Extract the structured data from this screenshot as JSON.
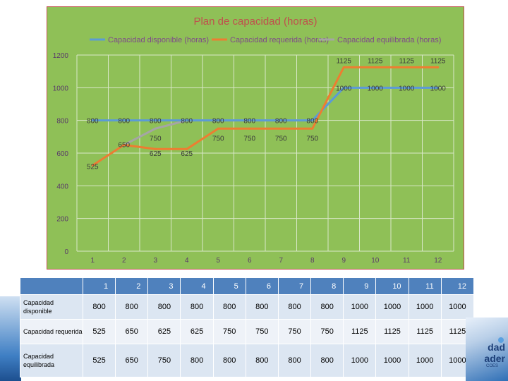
{
  "chart_data": {
    "type": "line",
    "title": "Plan de capacidad (horas)",
    "categories": [
      "1",
      "2",
      "3",
      "4",
      "5",
      "6",
      "7",
      "8",
      "9",
      "10",
      "11",
      "12"
    ],
    "series": [
      {
        "name": "Capacidad disponible (horas)",
        "color": "#5b9bd5",
        "values": [
          800,
          800,
          800,
          800,
          800,
          800,
          800,
          800,
          1000,
          1000,
          1000,
          1000
        ]
      },
      {
        "name": "Capacidad requerida (horas)",
        "color": "#ed7d31",
        "values": [
          525,
          650,
          625,
          625,
          750,
          750,
          750,
          750,
          1125,
          1125,
          1125,
          1125
        ]
      },
      {
        "name": "Capacidad equilibrada (horas)",
        "color": "#a5a5a5",
        "values": [
          525,
          650,
          750,
          800,
          800,
          800,
          800,
          800,
          1000,
          1000,
          1000,
          1000
        ]
      }
    ],
    "ylim": [
      0,
      1200
    ],
    "yticks": [
      "0",
      "200",
      "400",
      "600",
      "800",
      "1000",
      "1200"
    ],
    "grid": true,
    "legend_position": "top",
    "point_labels": [
      {
        "text": "800",
        "x": 1,
        "y": 800
      },
      {
        "text": "800",
        "x": 2,
        "y": 800
      },
      {
        "text": "800",
        "x": 3,
        "y": 800
      },
      {
        "text": "800",
        "x": 4,
        "y": 800
      },
      {
        "text": "800",
        "x": 5,
        "y": 800
      },
      {
        "text": "800",
        "x": 6,
        "y": 800
      },
      {
        "text": "800",
        "x": 7,
        "y": 800
      },
      {
        "text": "800",
        "x": 8,
        "y": 800
      },
      {
        "text": "750",
        "x": 3,
        "y": 750
      },
      {
        "text": "750",
        "x": 5,
        "y": 750
      },
      {
        "text": "750",
        "x": 6,
        "y": 750
      },
      {
        "text": "750",
        "x": 7,
        "y": 750
      },
      {
        "text": "750",
        "x": 8,
        "y": 750
      },
      {
        "text": "525",
        "x": 1,
        "y": 525
      },
      {
        "text": "650",
        "x": 2,
        "y": 650
      },
      {
        "text": "625",
        "x": 3,
        "y": 625
      },
      {
        "text": "625",
        "x": 4,
        "y": 625
      },
      {
        "text": "1125",
        "x": 9,
        "y": 1125
      },
      {
        "text": "1125",
        "x": 10,
        "y": 1125
      },
      {
        "text": "1125",
        "x": 11,
        "y": 1125
      },
      {
        "text": "1125",
        "x": 12,
        "y": 1125
      },
      {
        "text": "1000",
        "x": 9,
        "y": 1000
      },
      {
        "text": "1000",
        "x": 10,
        "y": 1000
      },
      {
        "text": "1000",
        "x": 11,
        "y": 1000
      },
      {
        "text": "1000",
        "x": 12,
        "y": 1000
      }
    ],
    "background_color": "#8fc057",
    "title_color": "#c0504d"
  },
  "table": {
    "headers": [
      "1",
      "2",
      "3",
      "4",
      "5",
      "6",
      "7",
      "8",
      "9",
      "10",
      "11",
      "12"
    ],
    "rows": [
      {
        "label": "Capacidad disponible",
        "values": [
          "800",
          "800",
          "800",
          "800",
          "800",
          "800",
          "800",
          "800",
          "1000",
          "1000",
          "1000",
          "1000"
        ]
      },
      {
        "label": "Capacidad requerida",
        "values": [
          "525",
          "650",
          "625",
          "625",
          "750",
          "750",
          "750",
          "750",
          "1125",
          "1125",
          "1125",
          "1125"
        ]
      },
      {
        "label": "Capacidad equilibrada",
        "values": [
          "525",
          "650",
          "750",
          "800",
          "800",
          "800",
          "800",
          "800",
          "1000",
          "1000",
          "1000",
          "1000"
        ]
      }
    ]
  },
  "logo": {
    "line1": "dad",
    "line2": "ader",
    "line3": "COES"
  }
}
